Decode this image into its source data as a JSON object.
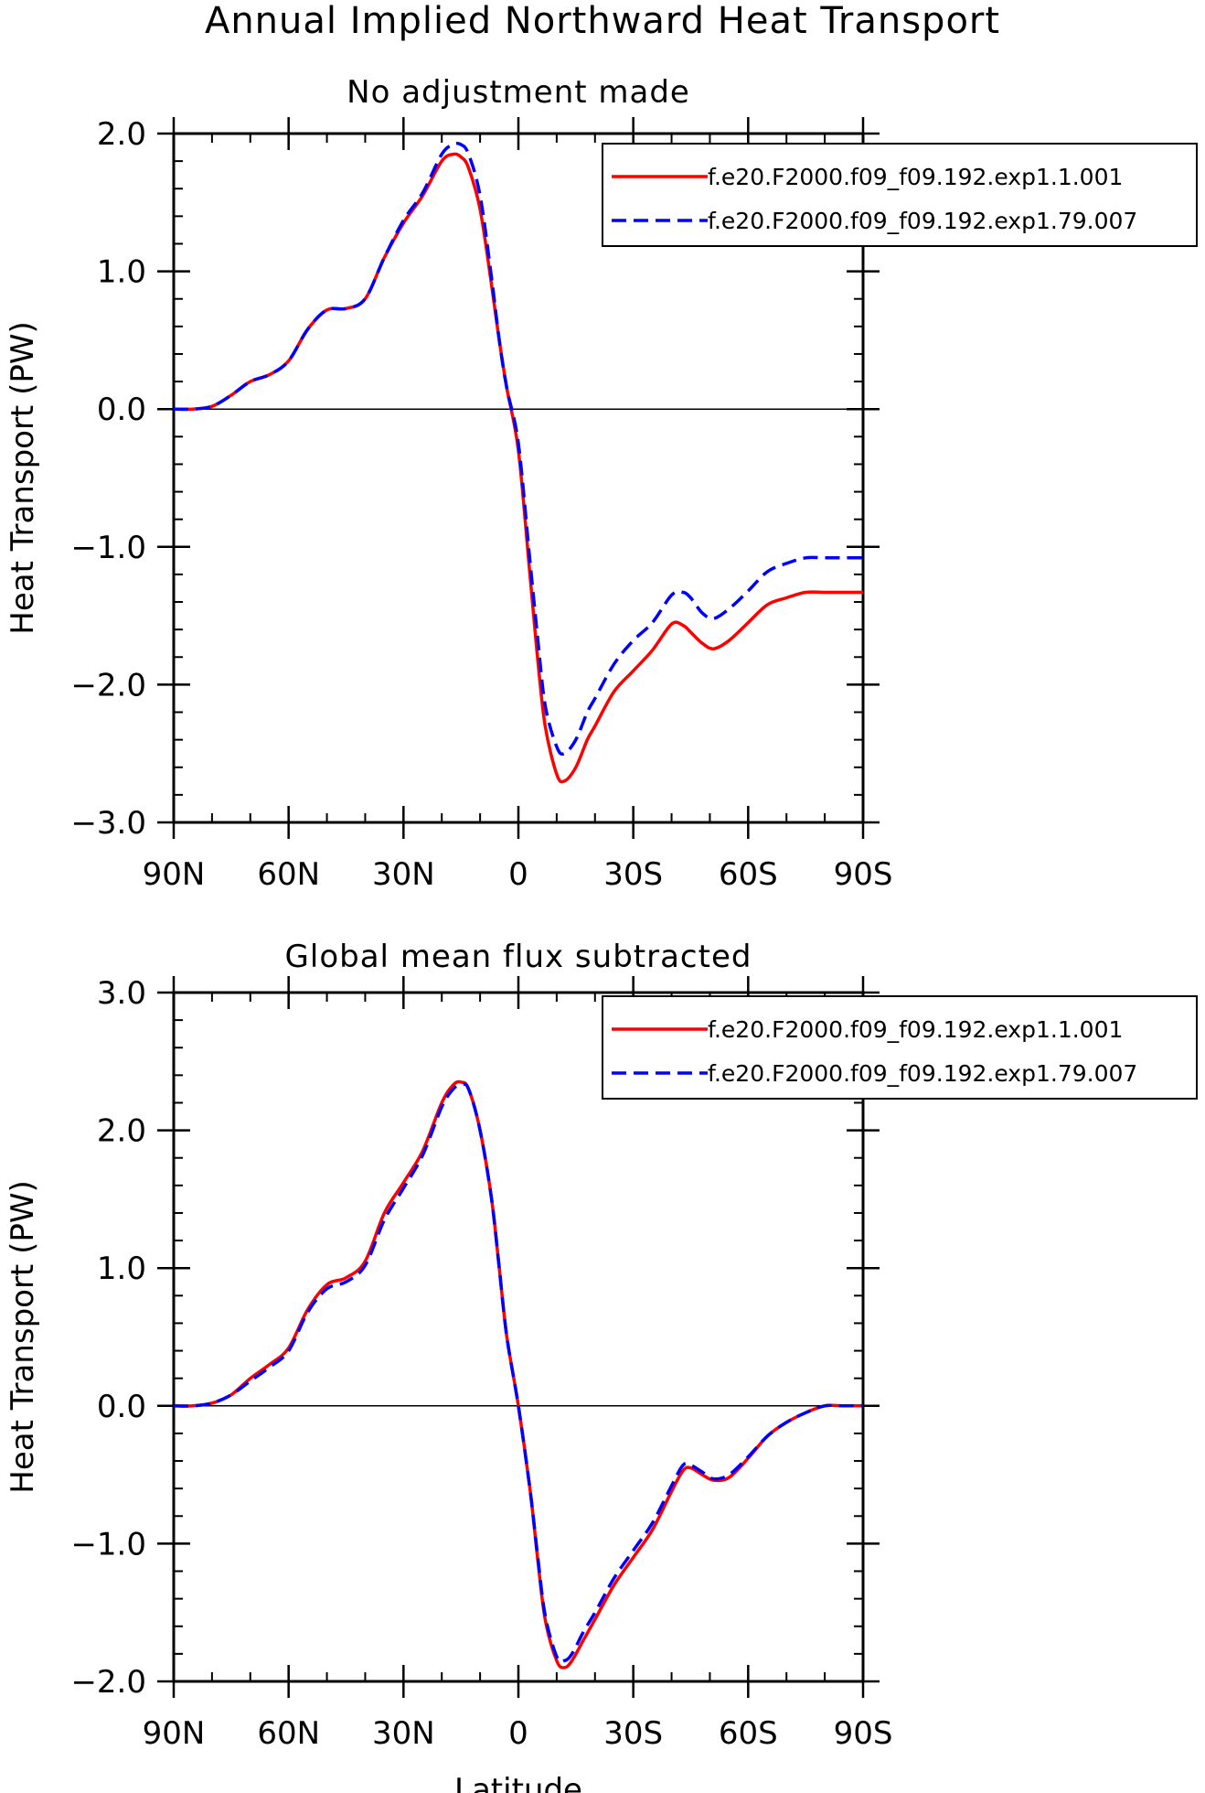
{
  "figure": {
    "title": "Annual Implied Northward Heat Transport"
  },
  "chart_data": [
    {
      "type": "line",
      "title": "No adjustment made",
      "xlabel": "",
      "ylabel": "Heat Transport (PW)",
      "xlim": [
        -90,
        90
      ],
      "ylim": [
        -3.0,
        2.0
      ],
      "x_tick_labels": [
        "90N",
        "60N",
        "30N",
        "0",
        "30S",
        "60S",
        "90S"
      ],
      "y_tick_labels": [
        "2.0",
        "1.0",
        "0.0",
        "−1.0",
        "−2.0",
        "−3.0"
      ],
      "x_unit_note": "x = latitude, north positive",
      "legend_position": "top-right",
      "series": [
        {
          "name": "f.e20.F2000.f09_f09.192.exp1.1.001",
          "color": "#ff0000",
          "dash": "solid",
          "x": [
            90,
            85,
            80,
            75,
            70,
            65,
            60,
            55,
            50,
            45,
            40,
            35,
            30,
            25,
            20,
            17,
            15,
            13,
            10,
            7,
            5,
            3,
            0,
            -3,
            -5,
            -7,
            -10,
            -12,
            -15,
            -18,
            -20,
            -25,
            -30,
            -35,
            -40,
            -43,
            -45,
            -48,
            -51,
            -55,
            -60,
            -65,
            -70,
            -75,
            -80,
            -85,
            -90
          ],
          "y": [
            0.0,
            0.0,
            0.02,
            0.1,
            0.2,
            0.25,
            0.35,
            0.58,
            0.72,
            0.73,
            0.8,
            1.1,
            1.35,
            1.55,
            1.8,
            1.85,
            1.83,
            1.75,
            1.45,
            0.9,
            0.5,
            0.15,
            -0.3,
            -1.2,
            -1.8,
            -2.3,
            -2.65,
            -2.7,
            -2.6,
            -2.4,
            -2.3,
            -2.05,
            -1.9,
            -1.75,
            -1.56,
            -1.57,
            -1.62,
            -1.7,
            -1.74,
            -1.68,
            -1.55,
            -1.42,
            -1.37,
            -1.33,
            -1.33,
            -1.33,
            -1.33
          ]
        },
        {
          "name": "f.e20.F2000.f09_f09.192.exp1.79.007",
          "color": "#0000ff",
          "dash": "dashed",
          "x": [
            90,
            85,
            80,
            75,
            70,
            65,
            60,
            55,
            50,
            45,
            40,
            35,
            30,
            25,
            20,
            17,
            15,
            13,
            10,
            7,
            5,
            3,
            0,
            -3,
            -5,
            -7,
            -10,
            -12,
            -15,
            -18,
            -20,
            -25,
            -30,
            -35,
            -40,
            -43,
            -45,
            -48,
            -51,
            -55,
            -60,
            -65,
            -70,
            -75,
            -80,
            -85,
            -90
          ],
          "y": [
            0.0,
            0.0,
            0.02,
            0.1,
            0.2,
            0.25,
            0.35,
            0.58,
            0.72,
            0.73,
            0.8,
            1.1,
            1.37,
            1.57,
            1.85,
            1.92,
            1.92,
            1.85,
            1.55,
            0.95,
            0.5,
            0.15,
            -0.25,
            -1.1,
            -1.65,
            -2.15,
            -2.45,
            -2.5,
            -2.4,
            -2.2,
            -2.1,
            -1.85,
            -1.68,
            -1.55,
            -1.35,
            -1.33,
            -1.37,
            -1.48,
            -1.52,
            -1.45,
            -1.32,
            -1.18,
            -1.12,
            -1.08,
            -1.08,
            -1.08,
            -1.08
          ]
        }
      ]
    },
    {
      "type": "line",
      "title": "Global mean flux subtracted",
      "xlabel": "Latitude",
      "ylabel": "Heat Transport (PW)",
      "xlim": [
        -90,
        90
      ],
      "ylim": [
        -2.0,
        3.0
      ],
      "x_tick_labels": [
        "90N",
        "60N",
        "30N",
        "0",
        "30S",
        "60S",
        "90S"
      ],
      "y_tick_labels": [
        "3.0",
        "2.0",
        "1.0",
        "0.0",
        "−1.0",
        "−2.0"
      ],
      "legend_position": "top-right",
      "series": [
        {
          "name": "f.e20.F2000.f09_f09.192.exp1.1.001",
          "color": "#ff0000",
          "dash": "solid",
          "x": [
            90,
            85,
            80,
            75,
            70,
            65,
            60,
            55,
            50,
            45,
            40,
            35,
            30,
            25,
            20,
            17,
            15,
            13,
            10,
            7,
            5,
            3,
            0,
            -3,
            -5,
            -7,
            -10,
            -12,
            -14,
            -17,
            -20,
            -25,
            -30,
            -35,
            -40,
            -43,
            -45,
            -48,
            -51,
            -55,
            -60,
            -65,
            -70,
            -75,
            -80,
            -85,
            -90
          ],
          "y": [
            0.0,
            0.0,
            0.02,
            0.08,
            0.2,
            0.3,
            0.42,
            0.7,
            0.88,
            0.93,
            1.05,
            1.4,
            1.62,
            1.85,
            2.2,
            2.33,
            2.35,
            2.3,
            2.0,
            1.5,
            1.0,
            0.5,
            0.0,
            -0.6,
            -1.1,
            -1.55,
            -1.85,
            -1.9,
            -1.85,
            -1.7,
            -1.55,
            -1.3,
            -1.1,
            -0.9,
            -0.62,
            -0.47,
            -0.45,
            -0.5,
            -0.54,
            -0.52,
            -0.38,
            -0.22,
            -0.12,
            -0.05,
            0.0,
            0.0,
            0.0
          ]
        },
        {
          "name": "f.e20.F2000.f09_f09.192.exp1.79.007",
          "color": "#0000ff",
          "dash": "dashed",
          "x": [
            90,
            85,
            80,
            75,
            70,
            65,
            60,
            55,
            50,
            45,
            40,
            35,
            30,
            25,
            20,
            17,
            15,
            13,
            10,
            7,
            5,
            3,
            0,
            -3,
            -5,
            -7,
            -10,
            -12,
            -14,
            -17,
            -20,
            -25,
            -30,
            -35,
            -40,
            -43,
            -45,
            -48,
            -51,
            -55,
            -60,
            -65,
            -70,
            -75,
            -80,
            -85,
            -90
          ],
          "y": [
            0.0,
            0.0,
            0.02,
            0.08,
            0.18,
            0.28,
            0.4,
            0.68,
            0.85,
            0.9,
            1.02,
            1.35,
            1.58,
            1.82,
            2.17,
            2.3,
            2.33,
            2.3,
            2.0,
            1.5,
            1.0,
            0.5,
            0.0,
            -0.6,
            -1.08,
            -1.52,
            -1.82,
            -1.85,
            -1.8,
            -1.64,
            -1.5,
            -1.25,
            -1.05,
            -0.85,
            -0.58,
            -0.43,
            -0.43,
            -0.48,
            -0.53,
            -0.5,
            -0.37,
            -0.22,
            -0.12,
            -0.05,
            0.0,
            0.0,
            0.0
          ]
        }
      ]
    }
  ]
}
